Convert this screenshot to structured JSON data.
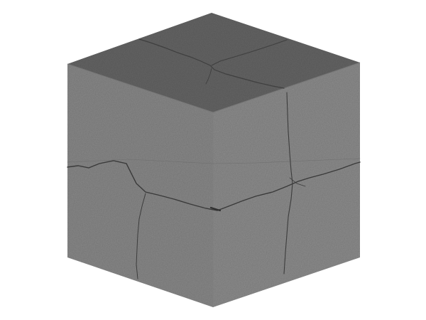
{
  "scene": {
    "subject": "cracked-concrete-cube",
    "background_color": "#ffffff",
    "faces": {
      "top_color": "#666666",
      "left_color": "#8a8a8a",
      "right_color": "#8e8e8e"
    },
    "crack_color": "#3a3a3a",
    "speckle_color": "#5a5a5a"
  }
}
